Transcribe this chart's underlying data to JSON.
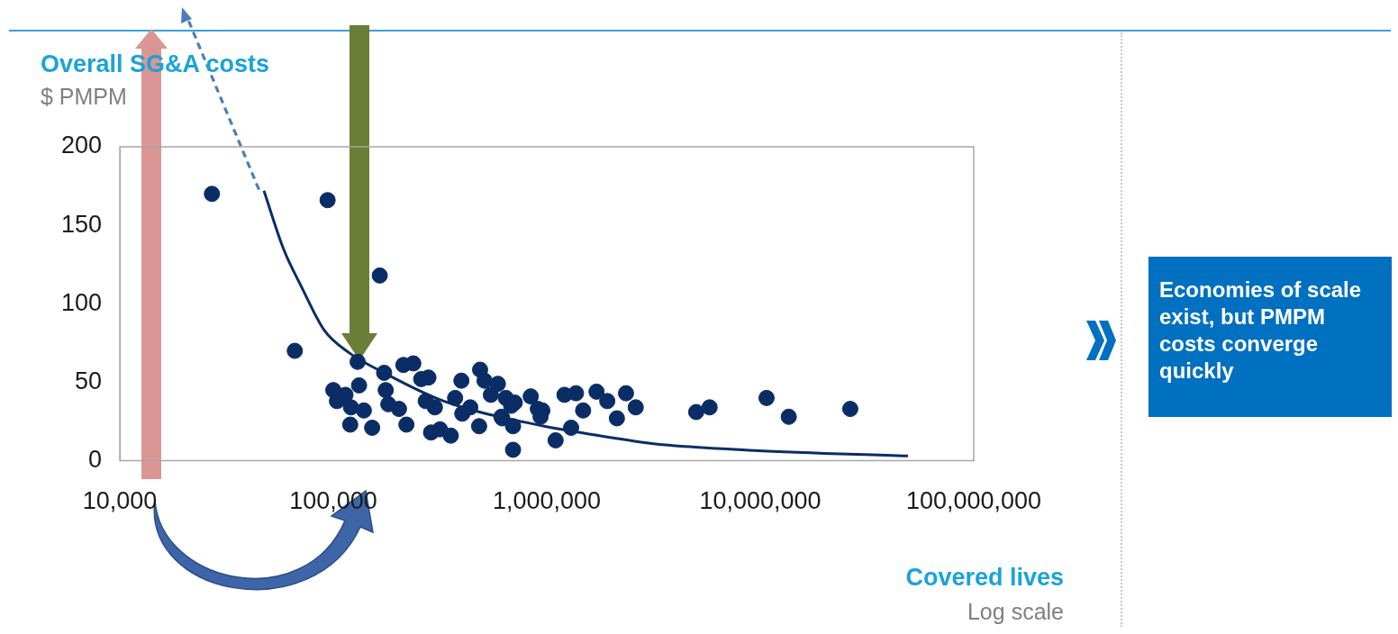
{
  "chart_data": {
    "type": "scatter",
    "ylabel": "Overall SG&A costs",
    "subtitle": "$ PMPM",
    "xlabel": "Covered lives",
    "log": "x",
    "xlim": [
      10000,
      100000000
    ],
    "xticks": [
      {
        "value": 10000,
        "label": "10,000"
      },
      {
        "value": 100000,
        "label": "100,000"
      },
      {
        "value": 1000000,
        "label": "1,000,000"
      },
      {
        "value": 10000000,
        "label": "10,000,000"
      },
      {
        "value": 100000000,
        "label": "100,000,000"
      }
    ],
    "ylim": [
      0,
      200
    ],
    "yticks": [
      0,
      50,
      100,
      150,
      200
    ],
    "annotations": [
      "Log scale",
      "Economies of scale exist, but PMPM costs converge quickly"
    ],
    "series": [
      {
        "type": "scatter",
        "color": "#0a2d66",
        "marker": "circle",
        "x": [
          27000,
          94000,
          165000,
          66000,
          130000,
          132000,
          100000,
          104000,
          114000,
          121000,
          139000,
          120000,
          152000,
          173000,
          176000,
          181000,
          203000,
          220000,
          213000,
          237000,
          258000,
          279000,
          271000,
          299000,
          287000,
          316000,
          355000,
          372000,
          398000,
          402000,
          438000,
          487000,
          511000,
          547000,
          590000,
          482000,
          643000,
          708000,
          619000,
          695000,
          841000,
          908000,
          935000,
          953000,
          1100000,
          1300000,
          1210000,
          1370000,
          1480000,
          1710000,
          1920000,
          2130000,
          2350000,
          2610000,
          5010000,
          5790000,
          10700000,
          13600000,
          26400000,
          613000,
          681000,
          695000
        ],
        "values": [
          170,
          166,
          118,
          70,
          63,
          48,
          45,
          38,
          42,
          34,
          32,
          23,
          21,
          56,
          45,
          36,
          33,
          23,
          61,
          62,
          52,
          53,
          38,
          34,
          18,
          20,
          16,
          40,
          51,
          30,
          34,
          58,
          51,
          42,
          49,
          22,
          40,
          37,
          27,
          7,
          41,
          33,
          28,
          32,
          13,
          21,
          42,
          43,
          32,
          44,
          38,
          27,
          43,
          34,
          31,
          34,
          40,
          28,
          33,
          28,
          35,
          22
        ]
      },
      {
        "type": "line",
        "color": "#0a2d66",
        "marker": "none",
        "x": [
          47300,
          58400,
          70800,
          90800,
          118000,
          173000,
          329000,
          972000,
          1430000,
          3100000,
          9350000,
          49200000
        ],
        "values": [
          172,
          135,
          111,
          83,
          69,
          56,
          38,
          22,
          18,
          11,
          6.5,
          3
        ]
      }
    ]
  }
}
